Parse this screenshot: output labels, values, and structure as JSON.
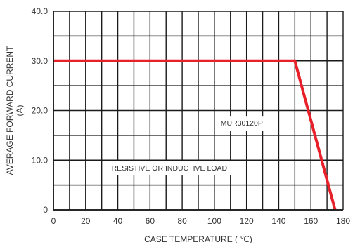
{
  "chart_data": {
    "type": "line",
    "title": "",
    "xlabel": "CASE TEMPERATURE ( ℃)",
    "ylabel_lines": [
      "AVERAGE FORWARD CURRENT",
      "(A)"
    ],
    "xlim": [
      0,
      180
    ],
    "ylim": [
      0,
      40
    ],
    "xticks": [
      0,
      20,
      40,
      60,
      80,
      100,
      120,
      140,
      160,
      180
    ],
    "xtick_labels": [
      "0",
      "20",
      "40",
      "60",
      "80",
      "100",
      "120",
      "140",
      "160",
      "180"
    ],
    "yticks": [
      0,
      10,
      20,
      30,
      40
    ],
    "ytick_labels": [
      "0",
      "10.0",
      "20.0",
      "30.0",
      "40.0"
    ],
    "x_grid_step": 10,
    "y_grid_step": 5,
    "grid": true,
    "series": [
      {
        "name": "MUR30120P",
        "color": "#e8202a",
        "points": [
          [
            0,
            30
          ],
          [
            150,
            30
          ],
          [
            175,
            0
          ]
        ]
      }
    ],
    "annotations": [
      {
        "text": "MUR30120P",
        "x": 117,
        "y": 17.5
      },
      {
        "text": "RESISTIVE OR INDUCTIVE LOAD",
        "x": 72,
        "y": 8.5
      }
    ]
  }
}
